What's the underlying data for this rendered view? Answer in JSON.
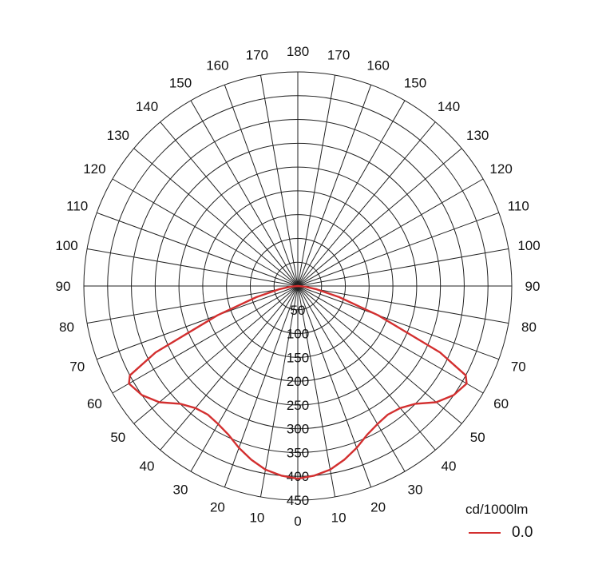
{
  "chart_data": {
    "type": "polar",
    "angle_ticks_left": [
      "0",
      "10",
      "20",
      "30",
      "40",
      "50",
      "60",
      "70",
      "80",
      "90",
      "100",
      "110",
      "120",
      "130",
      "140",
      "150",
      "160",
      "170",
      "180"
    ],
    "angle_ticks_right": [
      "10",
      "20",
      "30",
      "40",
      "50",
      "60",
      "70",
      "80",
      "90",
      "100",
      "110",
      "120",
      "130",
      "140",
      "150",
      "160",
      "170"
    ],
    "radial_ticks": [
      "50",
      "100",
      "150",
      "200",
      "250",
      "300",
      "350",
      "400",
      "450"
    ],
    "rlim": [
      0,
      450
    ],
    "unit": "cd/1000lm",
    "series": [
      {
        "name": "0.0",
        "color": "#d32f2f",
        "gamma": [
          0,
          5,
          10,
          15,
          20,
          25,
          30,
          35,
          40,
          45,
          50,
          55,
          60,
          62,
          65,
          70,
          75,
          80,
          85,
          90
        ],
        "values": [
          405,
          400,
          392,
          378,
          362,
          345,
          335,
          330,
          335,
          350,
          380,
          400,
          410,
          400,
          330,
          180,
          90,
          40,
          15,
          0
        ]
      }
    ]
  }
}
